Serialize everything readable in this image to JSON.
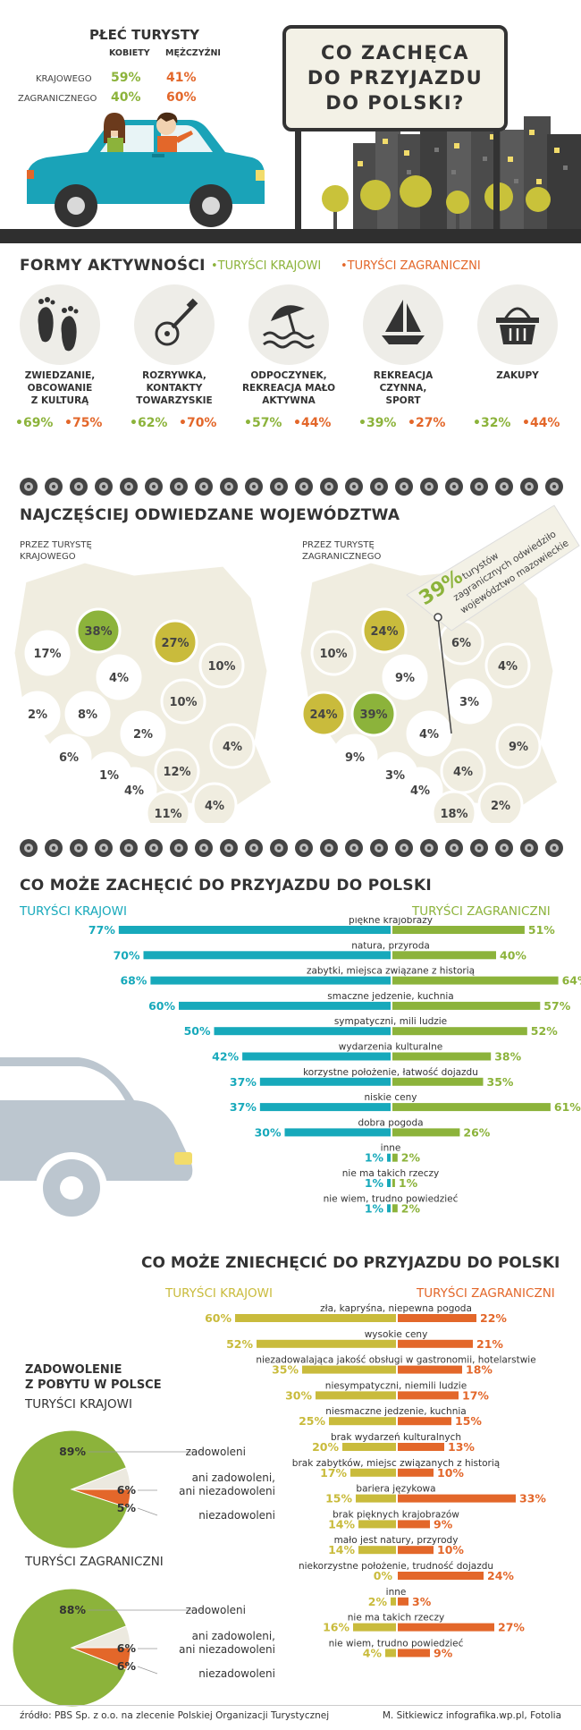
{
  "colors": {
    "krajowi": "#8cb33b",
    "zagraniczni": "#e3672a",
    "teal": "#17a9bb",
    "mustard": "#c9bb3c",
    "green": "#8cb33b",
    "orange": "#e3672a",
    "dark": "#333333"
  },
  "header": {
    "gender_title": "PŁEĆ TURYSTY",
    "col_women": "KOBIETY",
    "col_men": "MĘŻCZYŹNI",
    "rows": [
      {
        "label": "KRAJOWEGO",
        "women": "59%",
        "men": "41%"
      },
      {
        "label": "ZAGRANICZNEGO",
        "women": "40%",
        "men": "60%"
      }
    ],
    "sign_lines": [
      "CO ZACHĘCA",
      "DO PRZYJAZDU",
      "DO POLSKI?"
    ]
  },
  "activities": {
    "title": "FORMY AKTYWNOŚCI",
    "legend_domestic": "•TURYŚCI KRAJOWI",
    "legend_foreign": "•TURYŚCI ZAGRANICZNI",
    "items": [
      {
        "icon": "footprints-icon",
        "lines": [
          "ZWIEDZANIE,",
          "OBCOWANIE",
          "Z KULTURĄ"
        ],
        "domestic": "•69%",
        "foreign": "•75%"
      },
      {
        "icon": "guitar-icon",
        "lines": [
          "ROZRYWKA,",
          "KONTAKTY",
          "TOWARZYSKIE"
        ],
        "domestic": "•62%",
        "foreign": "•70%"
      },
      {
        "icon": "beach-umbrella-icon",
        "lines": [
          "ODPOCZYNEK,",
          "REKREACJA MAŁO",
          "AKTYWNA"
        ],
        "domestic": "•57%",
        "foreign": "•44%"
      },
      {
        "icon": "sailboat-icon",
        "lines": [
          "REKREACJA",
          "CZYNNA,",
          "SPORT"
        ],
        "domestic": "•39%",
        "foreign": "•27%"
      },
      {
        "icon": "basket-icon",
        "lines": [
          "ZAKUPY"
        ],
        "domestic": "•32%",
        "foreign": "•44%"
      }
    ]
  },
  "regions": {
    "title": "NAJCZĘŚCIEJ ODWIEDZANE WOJEWÓDZTWA",
    "domestic_label": [
      "PRZEZ TURYSTĘ",
      "KRAJOWEGO"
    ],
    "foreign_label": [
      "PRZEZ TURYSTĘ",
      "ZAGRANICZNEGO"
    ],
    "callout_value": "39%",
    "callout_text": [
      "turystów",
      "zagranicznych odwiedziło",
      "województwo mazowieckie"
    ],
    "domestic_values": [
      "38%",
      "27%",
      "17%",
      "4%",
      "10%",
      "10%",
      "2%",
      "8%",
      "2%",
      "6%",
      "1%",
      "4%",
      "12%",
      "4%",
      "11%",
      "4%"
    ],
    "foreign_values": [
      "24%",
      "6%",
      "10%",
      "9%",
      "4%",
      "3%",
      "24%",
      "39%",
      "4%",
      "9%",
      "3%",
      "4%",
      "4%",
      "9%",
      "18%",
      "2%"
    ]
  },
  "encourage": {
    "title": "CO MOŻE ZACHĘCIĆ DO PRZYJAZDU DO POLSKI",
    "left_label": "TURYŚCI KRAJOWI",
    "right_label": "TURYŚCI ZAGRANICZNI"
  },
  "discourage": {
    "title": "CO MOŻE ZNIECHĘCIĆ DO PRZYJAZDU DO POLSKI",
    "left_label": "TURYŚCI KRAJOWI",
    "right_label": "TURYŚCI ZAGRANICZNI"
  },
  "satisfaction": {
    "title_lines": [
      "ZADOWOLENIE",
      "Z POBYTU W POLSCE"
    ],
    "domestic_label": "TURYŚCI KRAJOWI",
    "foreign_label": "TURYŚCI ZAGRANICZNI",
    "labels": [
      "zadowoleni",
      "ani zadowoleni,",
      "ani niezadowoleni",
      "niezadowoleni"
    ],
    "domestic_pct": [
      "89%",
      "6%",
      "5%"
    ],
    "foreign_pct": [
      "88%",
      "6%",
      "6%"
    ]
  },
  "chart_data": [
    {
      "type": "bar",
      "title": "CO MOŻE ZACHĘCIĆ DO PRZYJAZDU DO POLSKI",
      "categories": [
        "piękne krajobrazy",
        "natura, przyroda",
        "zabytki, miejsca związane z historią",
        "smaczne jedzenie, kuchnia",
        "sympatyczni, mili ludzie",
        "wydarzenia kulturalne",
        "korzystne położenie, łatwość dojazdu",
        "niskie ceny",
        "dobra pogoda",
        "inne",
        "nie ma takich rzeczy",
        "nie wiem, trudno powiedzieć"
      ],
      "series": [
        {
          "name": "TURYŚCI KRAJOWI",
          "values": [
            77,
            70,
            68,
            60,
            50,
            42,
            37,
            37,
            30,
            1,
            1,
            1
          ]
        },
        {
          "name": "TURYŚCI ZAGRANICZNI",
          "values": [
            51,
            40,
            64,
            57,
            52,
            38,
            35,
            61,
            26,
            2,
            1,
            2
          ]
        }
      ]
    },
    {
      "type": "bar",
      "title": "CO MOŻE ZNIECHĘCIĆ DO PRZYJAZDU DO POLSKI",
      "categories": [
        "zła, kapryśna, niepewna pogoda",
        "wysokie ceny",
        "niezadowalająca jakość obsługi w gastronomii, hotelarstwie",
        "niesympatyczni, niemili ludzie",
        "niesmaczne jedzenie, kuchnia",
        "brak wydarzeń kulturalnych",
        "brak zabytków, miejsc związanych z historią",
        "bariera językowa",
        "brak pięknych krajobrazów",
        "mało jest natury, przyrody",
        "niekorzystne położenie, trudność dojazdu",
        "inne",
        "nie ma takich rzeczy",
        "nie wiem, trudno powiedzieć"
      ],
      "series": [
        {
          "name": "TURYŚCI KRAJOWI",
          "values": [
            60,
            52,
            35,
            30,
            25,
            20,
            17,
            15,
            14,
            14,
            0,
            2,
            16,
            4
          ]
        },
        {
          "name": "TURYŚCI ZAGRANICZNI",
          "values": [
            22,
            21,
            18,
            17,
            15,
            13,
            10,
            33,
            9,
            10,
            24,
            3,
            27,
            9
          ]
        }
      ]
    },
    {
      "type": "pie",
      "title": "TURYŚCI KRAJOWI",
      "categories": [
        "zadowoleni",
        "ani zadowoleni, ani niezadowoleni",
        "niezadowoleni"
      ],
      "values": [
        89,
        6,
        5
      ]
    },
    {
      "type": "pie",
      "title": "TURYŚCI ZAGRANICZNI",
      "categories": [
        "zadowoleni",
        "ani zadowoleni, ani niezadowoleni",
        "niezadowoleni"
      ],
      "values": [
        88,
        6,
        6
      ]
    }
  ],
  "footer": {
    "source": "źródło: PBS Sp. z o.o. na zlecenie Polskiej Organizacji Turystycznej",
    "credit": "M. Sitkiewicz infografika.wp.pl, Fotolia"
  }
}
